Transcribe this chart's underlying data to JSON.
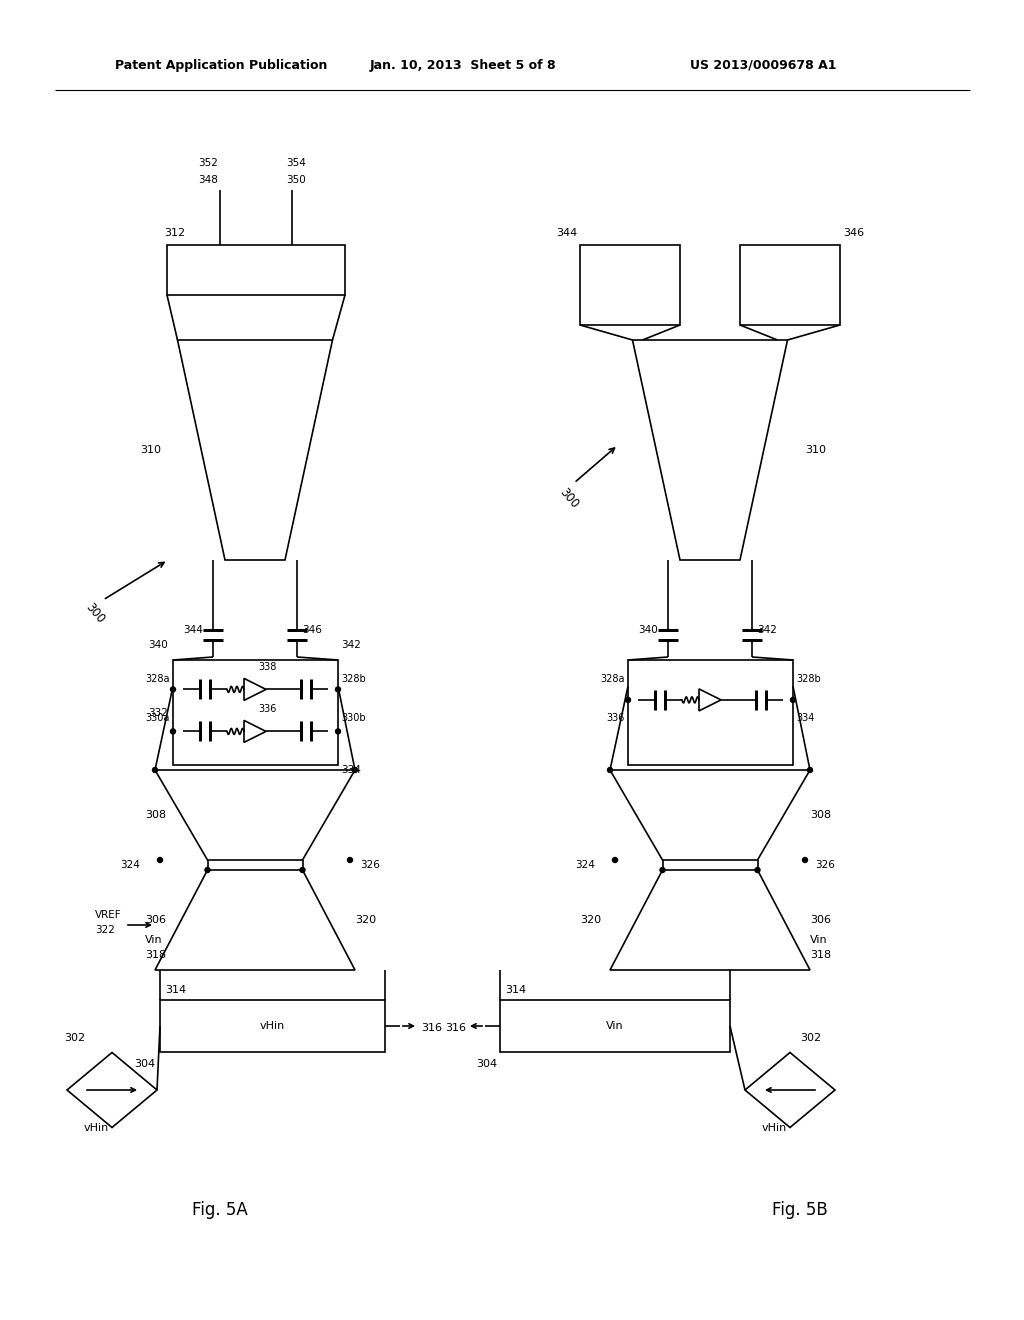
{
  "bg_color": "#ffffff",
  "line_color": "#000000",
  "header_text_left": "Patent Application Publication",
  "header_text_mid": "Jan. 10, 2013  Sheet 5 of 8",
  "header_text_right": "US 2013/0009678 A1",
  "fig5a_label": "Fig. 5A",
  "fig5b_label": "Fig. 5B",
  "lw": 1.2,
  "dot_r": 2.5
}
